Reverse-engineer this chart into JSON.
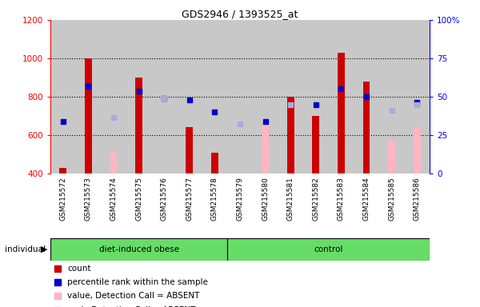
{
  "title": "GDS2946 / 1393525_at",
  "samples": [
    "GSM215572",
    "GSM215573",
    "GSM215574",
    "GSM215575",
    "GSM215576",
    "GSM215577",
    "GSM215578",
    "GSM215579",
    "GSM215580",
    "GSM215581",
    "GSM215582",
    "GSM215583",
    "GSM215584",
    "GSM215585",
    "GSM215586"
  ],
  "n_diet": 7,
  "n_control": 8,
  "count_values": [
    430,
    1000,
    null,
    900,
    null,
    640,
    510,
    null,
    null,
    800,
    700,
    1030,
    880,
    null,
    null
  ],
  "count_absent_values": [
    null,
    null,
    510,
    null,
    null,
    null,
    null,
    null,
    650,
    null,
    null,
    null,
    null,
    570,
    640
  ],
  "rank_values": [
    670,
    855,
    null,
    830,
    790,
    785,
    720,
    null,
    670,
    null,
    760,
    840,
    800,
    null,
    770
  ],
  "rank_absent_values": [
    null,
    null,
    690,
    null,
    790,
    null,
    null,
    660,
    null,
    760,
    null,
    null,
    null,
    730,
    760
  ],
  "ylim_left": [
    400,
    1200
  ],
  "ylim_right": [
    0,
    100
  ],
  "yticks_left": [
    400,
    600,
    800,
    1000,
    1200
  ],
  "yticks_right": [
    0,
    25,
    50,
    75,
    100
  ],
  "count_color": "#CC0000",
  "count_absent_color": "#FFB6C1",
  "rank_color": "#0000CC",
  "rank_absent_color": "#AAAADD",
  "bar_width": 0.28,
  "bar_base": 400,
  "col_bg_color": "#C8C8C8",
  "legend_items": [
    {
      "label": "count",
      "color": "#CC0000"
    },
    {
      "label": "percentile rank within the sample",
      "color": "#0000CC"
    },
    {
      "label": "value, Detection Call = ABSENT",
      "color": "#FFB6C1"
    },
    {
      "label": "rank, Detection Call = ABSENT",
      "color": "#AAAADD"
    }
  ],
  "individual_label": "individual",
  "group_color": "#66DD66",
  "group_border_color": "#000000"
}
